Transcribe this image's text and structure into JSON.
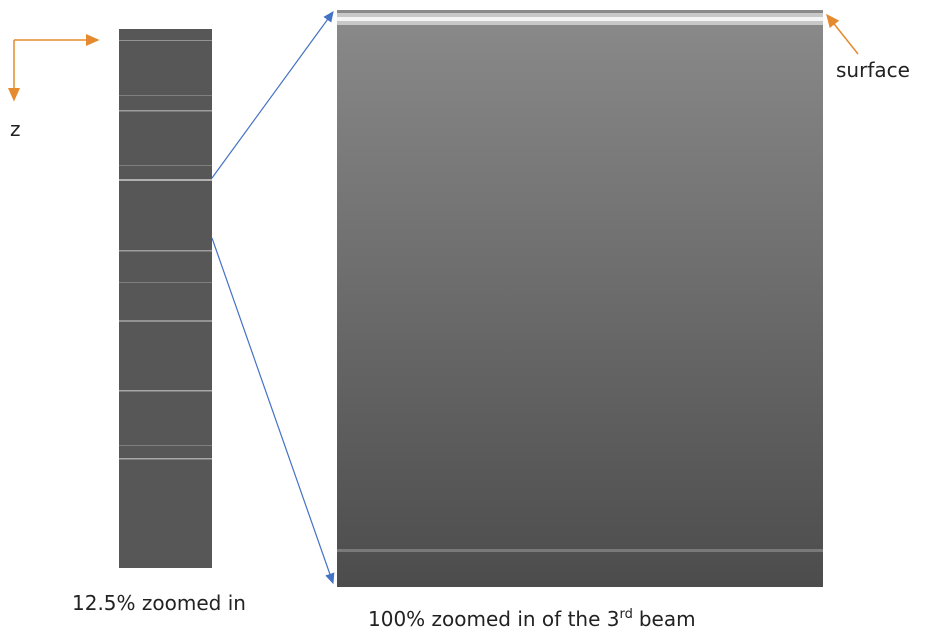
{
  "axis": {
    "z_label": "z"
  },
  "left_panel": {
    "caption": "12.5% zoomed in"
  },
  "right_panel": {
    "annotation": "surface",
    "caption_main": "100% zoomed in of the 3",
    "caption_sup": "rd",
    "caption_end": "beam"
  }
}
